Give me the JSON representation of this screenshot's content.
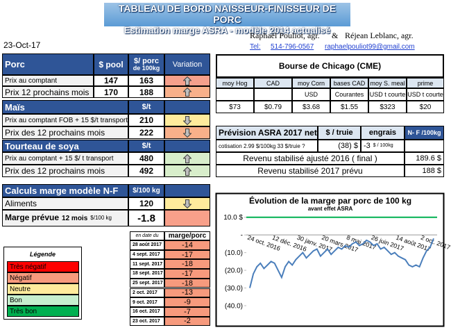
{
  "header": {
    "title": "TABLEAU DE BORD NAISSEUR-FINISSEUR DE PORC",
    "subtitle": "Estimation marge ASRA - modèle 2014 actualisé",
    "date": "23-Oct-17",
    "author1": "Raphaël Pouliot, agr.",
    "and": "&",
    "author2": "Réjean Leblanc, agr.",
    "tel_label": "Tel:",
    "tel": "514-796-0567",
    "email": "raphaelpouliot99@gmail.com"
  },
  "porc": {
    "title": "Porc",
    "col_pool": "$ pool",
    "col_porc": "$/ porc",
    "col_porc2": "de 100kg",
    "col_var": "Variation",
    "rows": [
      {
        "label": "Prix au comptant",
        "pool": 147,
        "porc": 163,
        "variation": "up",
        "color": "#f5a08c"
      },
      {
        "label": "Prix 12 prochains mois",
        "pool": 170,
        "porc": 188,
        "variation": "up",
        "color": "#f8b08a"
      }
    ]
  },
  "mais": {
    "title": "Maïs",
    "unit": "$/t",
    "rows": [
      {
        "label": "Prix au comptant FOB + 15 $/t transport",
        "value": 210,
        "variation": "down",
        "color": "#ffeb9c"
      },
      {
        "label": "Prix des 12 prochains mois",
        "value": 222,
        "variation": "down",
        "color": "#f8b08a"
      }
    ]
  },
  "soya": {
    "title": "Tourteau de soya",
    "unit": "$/t",
    "rows": [
      {
        "label": "Prix au comptant + 15 $/ t transport",
        "value": 480,
        "variation": "up",
        "color": "#d8eecb"
      },
      {
        "label": "Prix des 12 prochains mois",
        "value": 492,
        "variation": "up",
        "color": "#d8eecb"
      }
    ]
  },
  "calculs": {
    "title": "Calculs marge  modèle N-F",
    "unit": "$/100 kg",
    "rows": [
      {
        "label": "Aliments",
        "value": 120,
        "variation": "down",
        "color": "#ffeb9c"
      }
    ],
    "marge": {
      "label": "Marge prévue",
      "period": "12 mois",
      "unit": "$/100 kg",
      "value": -1.8,
      "color": "#f8a08a"
    }
  },
  "history": {
    "col_date": "en date du",
    "col_marge": "marge/porc",
    "color": "#f79a7d",
    "rows": [
      {
        "date": "28 août 2017",
        "value": -14
      },
      {
        "date": "4 sept. 2017",
        "value": -17
      },
      {
        "date": "11 sept. 2017",
        "value": -18
      },
      {
        "date": "18 sept. 2017",
        "value": -17
      },
      {
        "date": "25 sept. 2017",
        "value": -18
      },
      {
        "date": "2 oct. 2017",
        "value": -13
      },
      {
        "date": "9 oct. 2017",
        "value": -9
      },
      {
        "date": "16 oct. 2017",
        "value": -7
      },
      {
        "date": "23 oct. 2017",
        "value": -2
      }
    ]
  },
  "legend": {
    "title": "Légende",
    "items": [
      {
        "label": "Très négatif",
        "color": "#ff0000"
      },
      {
        "label": "Négatif",
        "color": "#f79a7d"
      },
      {
        "label": "Neutre",
        "color": "#ffeb9c"
      },
      {
        "label": "Bon",
        "color": "#c6efce"
      },
      {
        "label": "Très bon",
        "color": "#00b050"
      }
    ]
  },
  "cme": {
    "title": "Bourse de Chicago (CME)",
    "columns": [
      {
        "name": "moy Hog",
        "value": "$73"
      },
      {
        "name": "CAD",
        "value": "$0.79"
      },
      {
        "name": "moy Corn",
        "unit": "USD",
        "value": "$3.68"
      },
      {
        "name": "bases CAD",
        "unit": "Courantes",
        "value": "$1.55"
      },
      {
        "name": "moy S. meal",
        "unit": "USD t courte",
        "value": "$323"
      },
      {
        "name": "prime",
        "unit": "USD t courte",
        "value": "$20"
      }
    ]
  },
  "asra": {
    "title": "Prévision ASRA 2017 net",
    "col_truie": "$ / truie",
    "col_engrais": "engrais",
    "col_nf": "N- F /100kg",
    "cotisation": "cotisation 2.99 $/100kg 33 $/truie ?",
    "truie_value": "(38) $",
    "engrais_value": -3,
    "engrais_unit": "$ / 100kg",
    "rows": [
      {
        "label": "Revenu stabilisé ajusté 2016 ( final )",
        "value": "189.6 $"
      },
      {
        "label": "Revenu stabilisé 2017 prévu",
        "value": "188 $"
      }
    ]
  },
  "chart_data": {
    "type": "line",
    "title": "Évolution de la marge par porc de 100 kg",
    "subtitle": "avant effet ASRA",
    "categories": [
      "24 oct. 2016",
      null,
      null,
      null,
      null,
      null,
      null,
      "12 déc. 2016",
      null,
      null,
      null,
      null,
      null,
      null,
      "30 janv. 2017",
      null,
      null,
      null,
      null,
      null,
      null,
      "20 mars 2017",
      null,
      null,
      null,
      null,
      null,
      null,
      "8 mai 2017",
      null,
      null,
      null,
      null,
      null,
      null,
      "26 juin 2017",
      null,
      null,
      null,
      null,
      null,
      null,
      "14 août 2017",
      null,
      null,
      null,
      null,
      null,
      null,
      "2 oct. 2017",
      null,
      null,
      null
    ],
    "series": [
      {
        "color": "#4a7ebb",
        "values": [
          -30,
          -22,
          -18,
          -16,
          -19,
          -17,
          -15,
          -16,
          -20,
          -24,
          -18,
          -15,
          -17,
          -14,
          -12,
          -10,
          -13,
          -11,
          -9,
          -8,
          -12,
          -10,
          -8,
          -11,
          -9,
          -7,
          -8,
          -6,
          -7,
          -5,
          -4,
          -6,
          -5,
          -3,
          -4,
          -6,
          -5,
          -8,
          -7,
          -9,
          -11,
          -10,
          -12,
          -13,
          -14,
          -17,
          -18,
          -17,
          -18,
          -13,
          -9,
          -7,
          -2
        ]
      }
    ],
    "reference_lines": [
      {
        "value": 10,
        "color": "#00b050"
      }
    ],
    "ylim": [
      -40,
      15
    ],
    "yticks": [
      {
        "value": 10,
        "label": "10.0 $"
      },
      {
        "value": 0,
        "label": "-"
      },
      {
        "value": -10,
        "label": "(10.0)"
      },
      {
        "value": -20,
        "label": "(20.0)"
      },
      {
        "value": -30,
        "label": "(30.0)"
      },
      {
        "value": -40,
        "label": "(40.0)"
      }
    ]
  }
}
